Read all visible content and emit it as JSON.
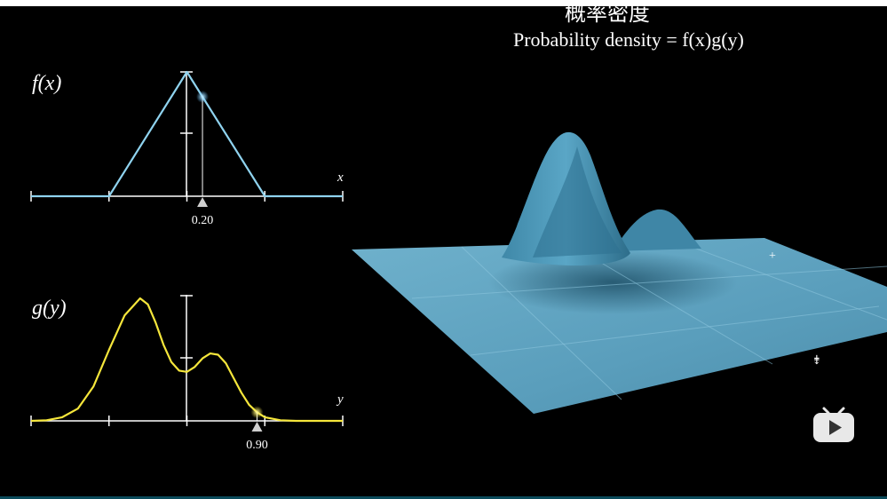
{
  "title": {
    "zh": "概率密度",
    "en": "Probability density = f(x)g(y)"
  },
  "colors": {
    "f_curve": "#8fd3ef",
    "g_curve": "#f5e63b",
    "axis": "#ffffff",
    "surface": "#5a9fbf",
    "surface_dark": "#24566e",
    "background": "#000000"
  },
  "icons": {
    "logo": "bilibili-tv-icon"
  },
  "chart_data": [
    {
      "type": "line",
      "function_label": "f(x)",
      "xlabel": "x",
      "marker_label": "0.20",
      "x_ticks": [
        -2,
        -1,
        0,
        1,
        2
      ],
      "xlim": [
        -2,
        2
      ],
      "ylim": [
        0,
        1
      ],
      "series": [
        {
          "x": [
            -2,
            -1,
            0,
            1,
            2
          ],
          "values": [
            0,
            0,
            1,
            0,
            0
          ]
        }
      ],
      "marker": {
        "x": 0.2,
        "y": 0.8
      }
    },
    {
      "type": "line",
      "function_label": "g(y)",
      "ylabel": "y",
      "marker_label": "0.90",
      "x_ticks": [
        -2,
        -1,
        0,
        1,
        2
      ],
      "xlim": [
        -2,
        2
      ],
      "ylim": [
        0,
        1
      ],
      "series": [
        {
          "x": [
            -2.0,
            -1.8,
            -1.6,
            -1.4,
            -1.2,
            -1.0,
            -0.8,
            -0.6,
            -0.5,
            -0.4,
            -0.3,
            -0.2,
            -0.1,
            0.0,
            0.1,
            0.2,
            0.3,
            0.4,
            0.5,
            0.6,
            0.7,
            0.8,
            0.9,
            1.0,
            1.2,
            1.4,
            1.6,
            1.8,
            2.0
          ],
          "values": [
            0.0,
            0.005,
            0.03,
            0.1,
            0.28,
            0.58,
            0.86,
            1.0,
            0.95,
            0.8,
            0.62,
            0.48,
            0.41,
            0.4,
            0.44,
            0.51,
            0.55,
            0.54,
            0.47,
            0.35,
            0.23,
            0.13,
            0.07,
            0.03,
            0.005,
            0.0,
            0.0,
            0.0,
            0.0
          ]
        }
      ],
      "marker": {
        "x": 0.9,
        "y": 0.07
      }
    },
    {
      "type": "area",
      "kind": "3d-surface",
      "surface_formula": "f(x)g(y)"
    }
  ]
}
